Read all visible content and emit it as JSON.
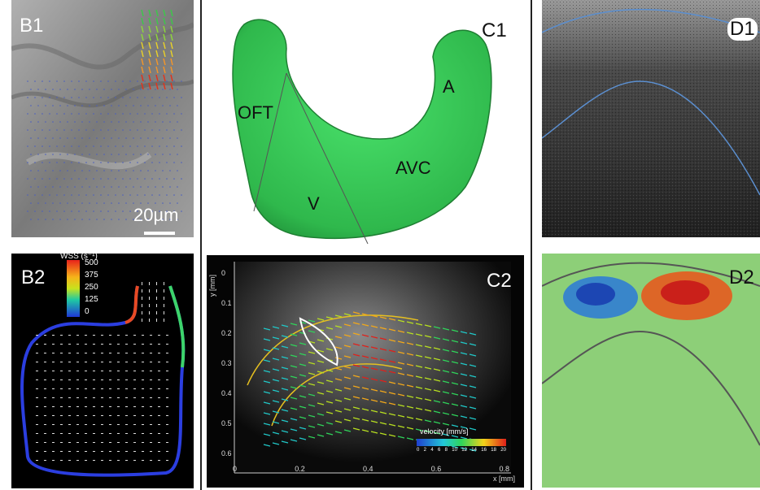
{
  "panels": {
    "b1": {
      "label": "B1",
      "scalebar": "20µm"
    },
    "b2": {
      "label": "B2",
      "legend_title": "WSS (s⁻¹)",
      "legend_ticks": [
        "500",
        "375",
        "250",
        "125",
        "0"
      ]
    },
    "c1": {
      "label": "C1",
      "regions": {
        "oft": "OFT",
        "a": "A",
        "avc": "AVC",
        "v": "V"
      }
    },
    "c2": {
      "label": "C2",
      "y_axis": "y [mm]",
      "x_axis": "x [mm]",
      "y_ticks": [
        "0",
        "0.1",
        "0.2",
        "0.3",
        "0.4",
        "0.5",
        "0.6"
      ],
      "x_ticks": [
        "0",
        "0.2",
        "0.4",
        "0.6",
        "0.8"
      ],
      "velocity_title": "velocity [mm/s]",
      "velocity_ticks": [
        "0",
        "2",
        "4",
        "6",
        "8",
        "10",
        "12",
        "14",
        "16",
        "18",
        "20"
      ]
    },
    "d1": {
      "label": "D1"
    },
    "d2": {
      "label": "D2"
    }
  },
  "colors": {
    "heart_green": "#3fce5c",
    "outline_blue": "#5b8fd0",
    "background_green": "#8fd07a"
  }
}
